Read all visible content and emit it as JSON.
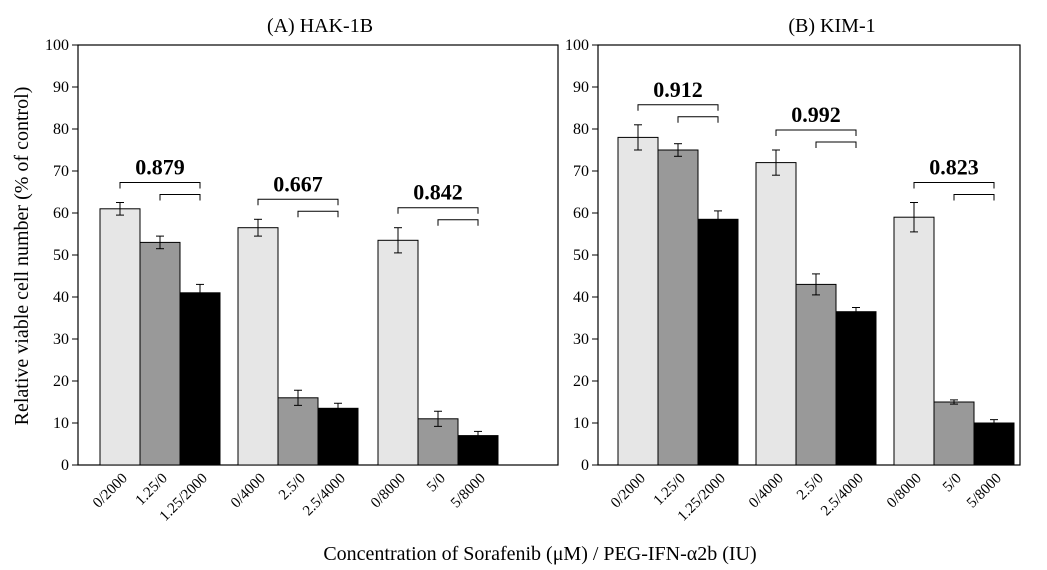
{
  "figure": {
    "ylabel": "Relative viable cell number (% of control)",
    "xlabel": "Concentration of Sorafenib (μM) / PEG-IFN-α2b (IU)"
  },
  "colors": {
    "light": "#e6e6e6",
    "mid": "#999999",
    "dark": "#000000"
  },
  "chart_data": [
    {
      "type": "bar",
      "title": "(A) HAK-1B",
      "ylim": [
        0,
        100
      ],
      "yticks": [
        0,
        10,
        20,
        30,
        40,
        50,
        60,
        70,
        80,
        90,
        100
      ],
      "groups": [
        {
          "bars": [
            {
              "label": "0/2000",
              "value": 61,
              "err": 1.5,
              "shade": "light"
            },
            {
              "label": "1.25/0",
              "value": 53,
              "err": 1.5,
              "shade": "mid"
            },
            {
              "label": "1.25/2000",
              "value": 41,
              "err": 2,
              "shade": "dark"
            }
          ],
          "ratio": "0.879"
        },
        {
          "bars": [
            {
              "label": "0/4000",
              "value": 56.5,
              "err": 2,
              "shade": "light"
            },
            {
              "label": "2.5/0",
              "value": 16,
              "err": 1.8,
              "shade": "mid"
            },
            {
              "label": "2.5/4000",
              "value": 13.5,
              "err": 1.2,
              "shade": "dark"
            }
          ],
          "ratio": "0.667"
        },
        {
          "bars": [
            {
              "label": "0/8000",
              "value": 53.5,
              "err": 3,
              "shade": "light"
            },
            {
              "label": "5/0",
              "value": 11,
              "err": 1.8,
              "shade": "mid"
            },
            {
              "label": "5/8000",
              "value": 7,
              "err": 1,
              "shade": "dark"
            }
          ],
          "ratio": "0.842"
        }
      ]
    },
    {
      "type": "bar",
      "title": "(B) KIM-1",
      "ylim": [
        0,
        100
      ],
      "yticks": [
        0,
        10,
        20,
        30,
        40,
        50,
        60,
        70,
        80,
        90,
        100
      ],
      "groups": [
        {
          "bars": [
            {
              "label": "0/2000",
              "value": 78,
              "err": 3,
              "shade": "light"
            },
            {
              "label": "1.25/0",
              "value": 75,
              "err": 1.5,
              "shade": "mid"
            },
            {
              "label": "1.25/2000",
              "value": 58.5,
              "err": 2,
              "shade": "dark"
            }
          ],
          "ratio": "0.912"
        },
        {
          "bars": [
            {
              "label": "0/4000",
              "value": 72,
              "err": 3,
              "shade": "light"
            },
            {
              "label": "2.5/0",
              "value": 43,
              "err": 2.5,
              "shade": "mid"
            },
            {
              "label": "2.5/4000",
              "value": 36.5,
              "err": 1,
              "shade": "dark"
            }
          ],
          "ratio": "0.992"
        },
        {
          "bars": [
            {
              "label": "0/8000",
              "value": 59,
              "err": 3.5,
              "shade": "light"
            },
            {
              "label": "5/0",
              "value": 15,
              "err": 0.5,
              "shade": "mid"
            },
            {
              "label": "5/8000",
              "value": 10,
              "err": 0.8,
              "shade": "dark"
            }
          ],
          "ratio": "0.823"
        }
      ]
    }
  ]
}
